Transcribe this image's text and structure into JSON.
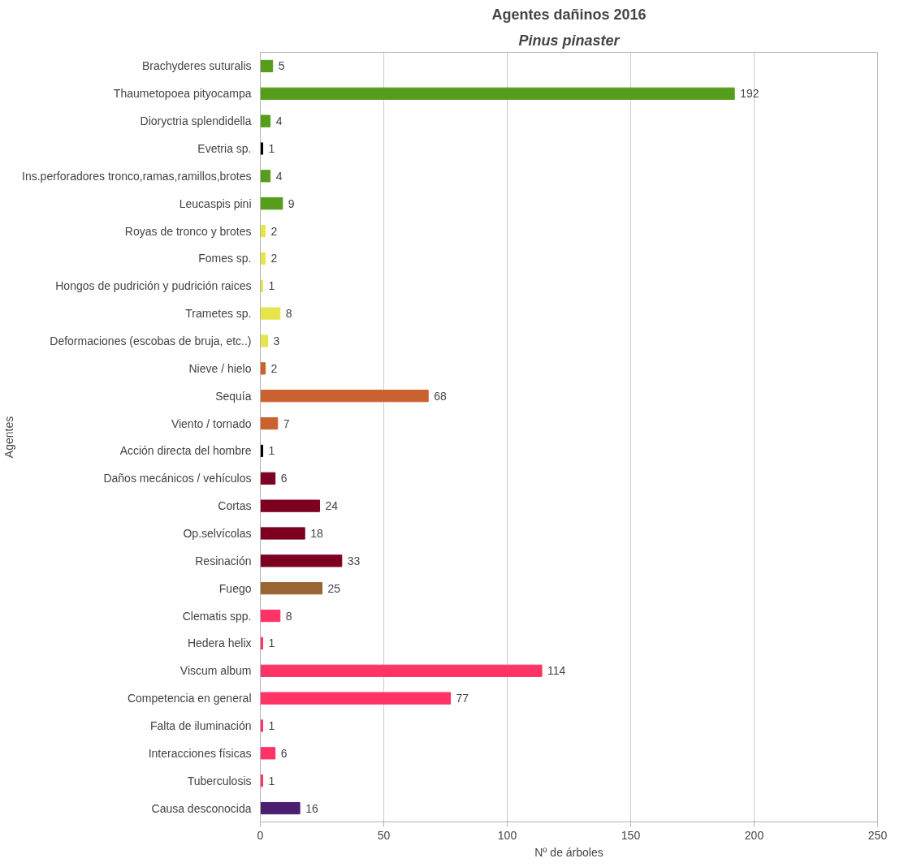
{
  "chart_data": {
    "type": "bar",
    "orientation": "horizontal",
    "title": "Agentes dañinos 2016",
    "subtitle": "Pinus pinaster",
    "xlabel": "Nº de árboles",
    "ylabel": "Agentes",
    "categories": [
      "Brachyderes suturalis",
      "Thaumetopoea pityocampa",
      "Dioryctria splendidella",
      "Evetria sp.",
      "Ins.perforadores tronco,ramas,ramillos,brotes",
      "Leucaspis pini",
      "Royas de tronco y brotes",
      "Fomes sp.",
      "Hongos de pudrición y pudrición raices",
      "Trametes sp.",
      "Deformaciones (escobas de bruja, etc..)",
      "Nieve / hielo",
      "Sequía",
      "Viento / tornado",
      "Acción directa del hombre",
      "Daños mecánicos / vehículos",
      "Cortas",
      "Op.selvícolas",
      "Resinación",
      "Fuego",
      "Clematis spp.",
      "Hedera helix",
      "Viscum album",
      "Competencia en general",
      "Falta de iluminación",
      "Interacciones físicas",
      "Tuberculosis",
      "Causa desconocida"
    ],
    "values": [
      5,
      192,
      4,
      1,
      4,
      9,
      2,
      2,
      1,
      8,
      3,
      2,
      68,
      7,
      1,
      6,
      24,
      18,
      33,
      25,
      8,
      1,
      114,
      77,
      1,
      6,
      1,
      16
    ],
    "colors": [
      "#579d1c",
      "#579d1c",
      "#579d1c",
      "#000000",
      "#579d1c",
      "#579d1c",
      "#e6e64c",
      "#e6e64c",
      "#e6e64c",
      "#e6e64c",
      "#e6e64c",
      "#c9622e",
      "#c9622e",
      "#c9622e",
      "#000000",
      "#7e0021",
      "#7e0021",
      "#7e0021",
      "#7e0021",
      "#996633",
      "#ff3366",
      "#ff3366",
      "#ff3366",
      "#ff3366",
      "#ff3366",
      "#ff3366",
      "#ff3366",
      "#4b1f6f"
    ],
    "xlim": [
      0,
      250
    ],
    "xticks": [
      0,
      50,
      100,
      150,
      200,
      250
    ],
    "grid": "x",
    "data_labels": true
  }
}
